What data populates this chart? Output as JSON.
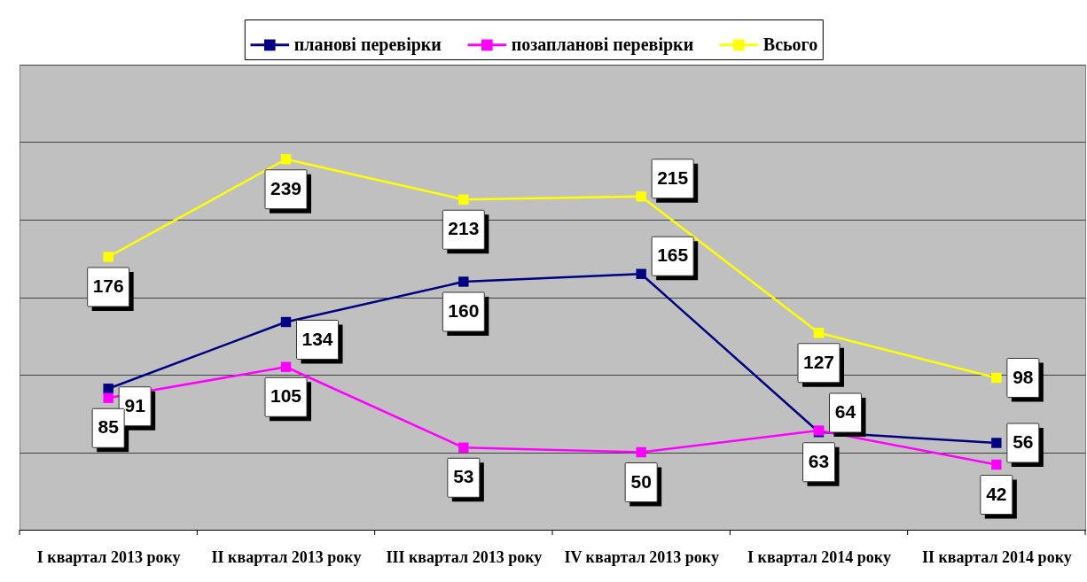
{
  "chart_data": {
    "type": "line",
    "categories": [
      "I квартал 2013 року",
      "II квартал 2013 року",
      "III квартал 2013 року",
      "IV квартал 2013 року",
      "I квартал 2014 року",
      "II квартал 2014 року"
    ],
    "series": [
      {
        "name": "планові перевірки",
        "color": "#000080",
        "values": [
          91,
          134,
          160,
          165,
          63,
          56
        ]
      },
      {
        "name": "позапланові перевірки",
        "color": "#ff00ff",
        "values": [
          85,
          105,
          53,
          50,
          64,
          42
        ]
      },
      {
        "name": "Всього",
        "color": "#ffff00",
        "values": [
          176,
          239,
          213,
          215,
          127,
          98
        ]
      }
    ],
    "ylim": [
      0,
      300
    ],
    "yticks": [
      0,
      50,
      100,
      150,
      200,
      250,
      300
    ],
    "tick_labels": "x",
    "grid": "y",
    "legend": "top",
    "marker": "square",
    "line_style": "solid",
    "data_labels": true
  }
}
